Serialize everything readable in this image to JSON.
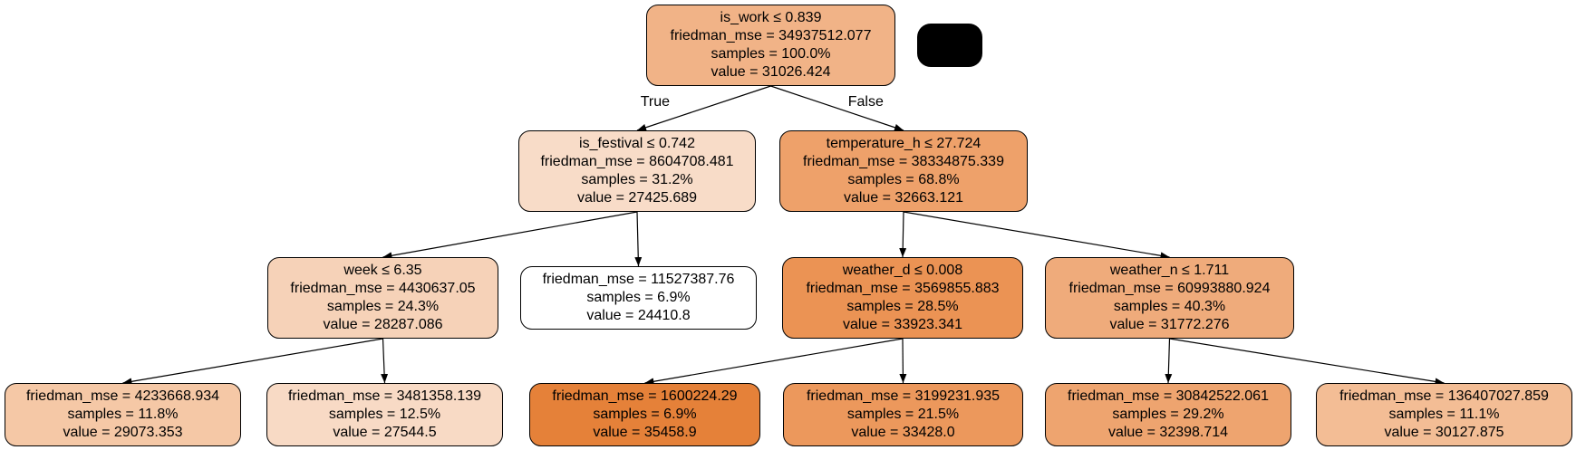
{
  "nodes": [
    {
      "id": "n0",
      "lines": [
        "is_work ≤ 0.839",
        "friedman_mse = 34937512.077",
        "samples = 100.0%",
        "value = 31026.424"
      ],
      "fill": "#f1b387"
    },
    {
      "id": "n1",
      "lines": [
        "is_festival ≤ 0.742",
        "friedman_mse = 8604708.481",
        "samples = 31.2%",
        "value = 27425.689"
      ],
      "fill": "#f8dcc8"
    },
    {
      "id": "n2",
      "lines": [
        "temperature_h ≤ 27.724",
        "friedman_mse = 38334875.339",
        "samples = 68.8%",
        "value = 32663.121"
      ],
      "fill": "#eea16a"
    },
    {
      "id": "n3",
      "lines": [
        "week ≤ 6.35",
        "friedman_mse = 4430637.05",
        "samples = 24.3%",
        "value = 28287.086"
      ],
      "fill": "#f6d2b8"
    },
    {
      "id": "n4",
      "lines": [
        "friedman_mse = 11527387.76",
        "samples = 6.9%",
        "value = 24410.8"
      ],
      "fill": "#ffffff"
    },
    {
      "id": "n5",
      "lines": [
        "weather_d ≤ 0.008",
        "friedman_mse = 3569855.883",
        "samples = 28.5%",
        "value = 33923.341"
      ],
      "fill": "#eb9354"
    },
    {
      "id": "n6",
      "lines": [
        "weather_n ≤ 1.711",
        "friedman_mse = 60993880.924",
        "samples = 40.3%",
        "value = 31772.276"
      ],
      "fill": "#efab7b"
    },
    {
      "id": "n7",
      "lines": [
        "friedman_mse = 4233668.934",
        "samples = 11.8%",
        "value = 29073.353"
      ],
      "fill": "#f5c8a6"
    },
    {
      "id": "n8",
      "lines": [
        "friedman_mse = 3481358.139",
        "samples = 12.5%",
        "value = 27544.5"
      ],
      "fill": "#f8dac5"
    },
    {
      "id": "n9",
      "lines": [
        "friedman_mse = 1600224.29",
        "samples = 6.9%",
        "value = 35458.9"
      ],
      "fill": "#e58139"
    },
    {
      "id": "n10",
      "lines": [
        "friedman_mse = 3199231.935",
        "samples = 21.5%",
        "value = 33428.0"
      ],
      "fill": "#ec985c"
    },
    {
      "id": "n11",
      "lines": [
        "friedman_mse = 30842522.061",
        "samples = 29.2%",
        "value = 32398.714"
      ],
      "fill": "#eea46f"
    },
    {
      "id": "n12",
      "lines": [
        "friedman_mse = 136407027.859",
        "samples = 11.1%",
        "value = 30127.875"
      ],
      "fill": "#f3bd95"
    }
  ],
  "edges": [
    {
      "from": "n0",
      "to": "n1",
      "label": "True"
    },
    {
      "from": "n0",
      "to": "n2",
      "label": "False"
    },
    {
      "from": "n1",
      "to": "n3",
      "label": ""
    },
    {
      "from": "n1",
      "to": "n4",
      "label": ""
    },
    {
      "from": "n2",
      "to": "n5",
      "label": ""
    },
    {
      "from": "n2",
      "to": "n6",
      "label": ""
    },
    {
      "from": "n3",
      "to": "n7",
      "label": ""
    },
    {
      "from": "n3",
      "to": "n8",
      "label": ""
    },
    {
      "from": "n5",
      "to": "n9",
      "label": ""
    },
    {
      "from": "n5",
      "to": "n10",
      "label": ""
    },
    {
      "from": "n6",
      "to": "n11",
      "label": ""
    },
    {
      "from": "n6",
      "to": "n12",
      "label": ""
    }
  ]
}
